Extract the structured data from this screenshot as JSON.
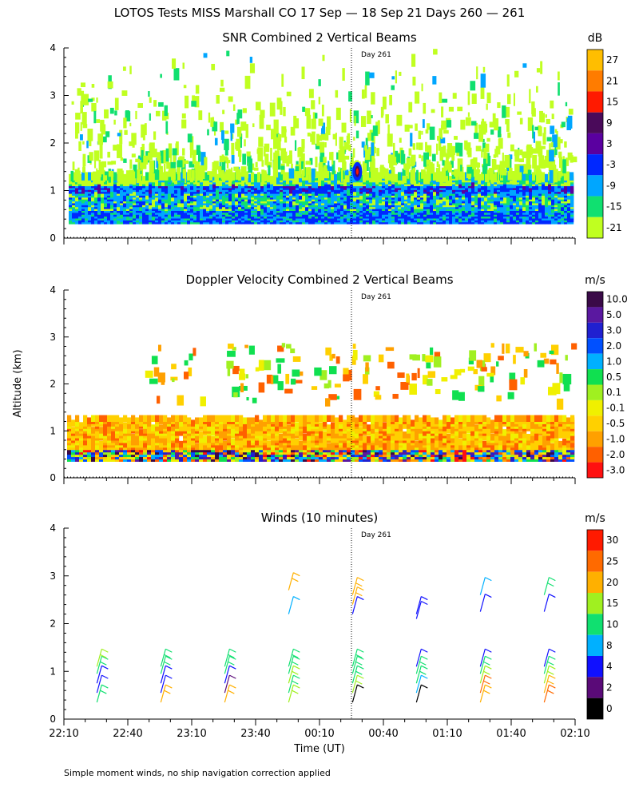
{
  "figure": {
    "title": "LOTOS Tests MISS Marshall CO  17 Sep — 18 Sep 21 Days 260 — 261",
    "ylabel": "Altitude (km)",
    "xlabel": "Time (UT)",
    "footnote": "Simple moment winds, no ship navigation correction applied",
    "day_marker": "Day 261"
  },
  "chart_data": [
    {
      "type": "heatmap",
      "title": "SNR Combined 2 Vertical Beams",
      "unit": "dB",
      "xlim_minutes": [
        0,
        240
      ],
      "ylim_km": [
        0,
        4
      ],
      "yticks": [
        "0",
        "1",
        "2",
        "3",
        "4"
      ],
      "colorbar": {
        "labels": [
          "27",
          "21",
          "15",
          "9",
          "3",
          "-3",
          "-9",
          "-15",
          "-21"
        ],
        "colors": [
          "#ffbe00",
          "#ff7c00",
          "#ff1a00",
          "#4a0a5a",
          "#5a00a0",
          "#0028ff",
          "#00a6ff",
          "#10e070",
          "#c0ff20"
        ]
      },
      "layers": [
        {
          "name": "noise cloud",
          "z_dB": [
            -21,
            -15
          ],
          "alt_km": [
            1.3,
            4.0
          ]
        },
        {
          "name": "boundary layer",
          "z_dB": [
            -15,
            3
          ],
          "alt_km": [
            0.3,
            1.3
          ]
        },
        {
          "name": "strong return 00:30",
          "z_dB": 15,
          "alt_km": 1.4
        }
      ]
    },
    {
      "type": "heatmap",
      "title": "Doppler Velocity Combined 2 Vertical Beams",
      "unit": "m/s",
      "xlim_minutes": [
        0,
        240
      ],
      "ylim_km": [
        0,
        4
      ],
      "yticks": [
        "0",
        "1",
        "2",
        "3",
        "4"
      ],
      "colorbar": {
        "labels": [
          "10.0",
          "5.0",
          "3.0",
          "2.0",
          "1.0",
          "0.5",
          "0.1",
          "-0.1",
          "-0.5",
          "-1.0",
          "-2.0",
          "-3.0"
        ],
        "colors": [
          "#3a0a48",
          "#5a18a0",
          "#2020d0",
          "#0050ff",
          "#00b0ff",
          "#10e050",
          "#a0f020",
          "#f0f000",
          "#ffd000",
          "#ffa000",
          "#ff6000",
          "#ff1010"
        ]
      },
      "layers": [
        {
          "name": "boundary layer",
          "v_ms": [
            -1.0,
            -0.1
          ],
          "alt_km": [
            0.3,
            1.3
          ]
        },
        {
          "name": "upper patches",
          "v_ms": [
            -0.5,
            0.5
          ],
          "alt_km": [
            1.6,
            2.8
          ]
        }
      ]
    },
    {
      "type": "wind barbs",
      "title": "Winds (10 minutes)",
      "unit": "m/s",
      "xlim_minutes": [
        0,
        240
      ],
      "ylim_km": [
        0,
        4
      ],
      "yticks": [
        "0",
        "1",
        "2",
        "3",
        "4"
      ],
      "xticks": [
        "22:10",
        "22:40",
        "23:10",
        "23:40",
        "00:10",
        "00:40",
        "01:10",
        "01:40",
        "02:10"
      ],
      "colorbar": {
        "labels": [
          "30",
          "25",
          "20",
          "15",
          "10",
          "8",
          "4",
          "2",
          "0"
        ],
        "colors": [
          "#ff1a00",
          "#ff6a00",
          "#ffb000",
          "#a0f020",
          "#10e070",
          "#00b0ff",
          "#1010ff",
          "#5a0a78",
          "#000000"
        ]
      },
      "profiles": [
        {
          "time": "22:30",
          "alt_km": [
            0.35,
            0.55,
            0.75,
            0.95,
            1.1
          ],
          "speed_ms": [
            12,
            4,
            6,
            10,
            18
          ]
        },
        {
          "time": "23:00",
          "alt_km": [
            0.35,
            0.55,
            0.75,
            0.95,
            1.1
          ],
          "speed_ms": [
            20,
            4,
            6,
            10,
            12
          ]
        },
        {
          "time": "23:30",
          "alt_km": [
            0.35,
            0.55,
            0.75,
            0.95,
            1.1
          ],
          "speed_ms": [
            22,
            2,
            5,
            10,
            12
          ]
        },
        {
          "time": "00:00",
          "alt_km": [
            0.35,
            0.55,
            0.75,
            0.95,
            1.1
          ],
          "speed_ms": [
            18,
            10,
            15,
            12,
            12
          ]
        },
        {
          "time": "00:00",
          "alt_km": [
            2.2,
            2.7
          ],
          "speed_ms": [
            8,
            22
          ]
        },
        {
          "time": "00:30",
          "alt_km": [
            0.35,
            0.55,
            0.75,
            0.95,
            1.1
          ],
          "speed_ms": [
            0,
            15,
            12,
            10,
            12
          ]
        },
        {
          "time": "00:30",
          "alt_km": [
            2.2,
            2.4,
            2.6
          ],
          "speed_ms": [
            4,
            20,
            22
          ]
        },
        {
          "time": "01:00",
          "alt_km": [
            0.35,
            0.55,
            0.75,
            0.95,
            1.1
          ],
          "speed_ms": [
            0,
            8,
            10,
            12,
            4
          ]
        },
        {
          "time": "01:00",
          "alt_km": [
            2.1,
            2.2
          ],
          "speed_ms": [
            4,
            6
          ]
        },
        {
          "time": "01:30",
          "alt_km": [
            0.35,
            0.55,
            0.75,
            0.95,
            1.1
          ],
          "speed_ms": [
            22,
            25,
            15,
            12,
            4
          ]
        },
        {
          "time": "01:30",
          "alt_km": [
            2.25,
            2.6
          ],
          "speed_ms": [
            4,
            8
          ]
        },
        {
          "time": "02:00",
          "alt_km": [
            0.35,
            0.55,
            0.75,
            0.95,
            1.1
          ],
          "speed_ms": [
            25,
            22,
            15,
            10,
            4
          ]
        },
        {
          "time": "02:00",
          "alt_km": [
            2.25,
            2.6
          ],
          "speed_ms": [
            4,
            12
          ]
        }
      ]
    }
  ]
}
